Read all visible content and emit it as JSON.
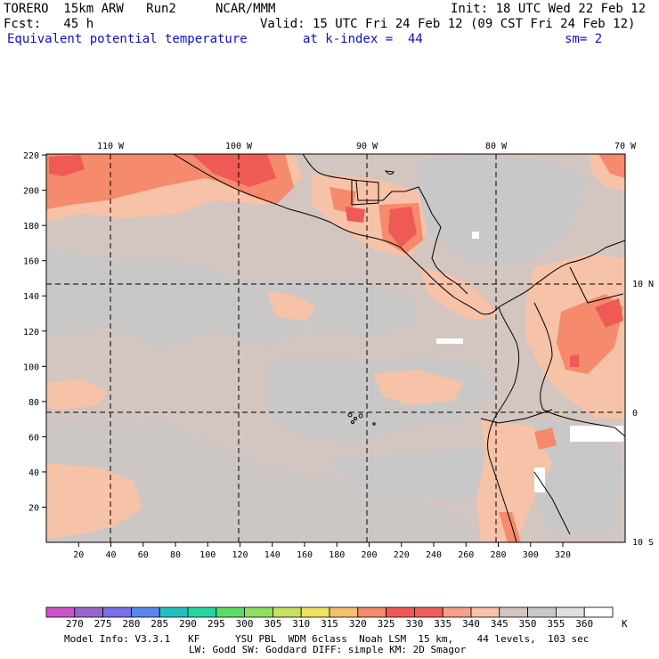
{
  "header": {
    "model": "TORERO  15km ARW   Run2",
    "center": "NCAR/MMM",
    "init": "Init: 18 UTC Wed 22 Feb 12",
    "fcst": "Fcst:   45 h",
    "valid": "Valid: 15 UTC Fri 24 Feb 12 (09 CST Fri 24 Feb 12)",
    "field": "Equivalent potential temperature",
    "level": "at k-index =  44",
    "smooth": "sm= 2"
  },
  "map": {
    "top_lon_labels": [
      "110 W",
      "100 W",
      "90 W",
      "80 W",
      "70 W"
    ],
    "right_lat_labels": [
      "10 N",
      "0",
      "10 S"
    ],
    "y_grid_labels": [
      "20",
      "40",
      "60",
      "80",
      "100",
      "120",
      "140",
      "160",
      "180",
      "200",
      "220"
    ],
    "x_grid_labels": [
      "20",
      "40",
      "60",
      "80",
      "100",
      "120",
      "140",
      "160",
      "180",
      "200",
      "220",
      "240",
      "260",
      "280",
      "300",
      "320"
    ],
    "colors": {
      "background_field": "#d3c5c0",
      "warm_field": "#f6c2a8",
      "orange": "#f58a6d",
      "red": "#ef5a55",
      "gray": "#c8c8c8",
      "white": "#ffffff"
    }
  },
  "colorbar": {
    "labels": [
      "270",
      "275",
      "280",
      "285",
      "290",
      "295",
      "300",
      "305",
      "310",
      "315",
      "320",
      "325",
      "330",
      "335",
      "340",
      "345",
      "350",
      "355",
      "360"
    ],
    "unit": "K",
    "colors": [
      "#cc55cc",
      "#9966cc",
      "#7a70e8",
      "#5a88f0",
      "#23c0c0",
      "#22d8a0",
      "#5cdc66",
      "#8ee060",
      "#c8e060",
      "#eee260",
      "#f6c070",
      "#f58a6d",
      "#ef5a55",
      "#ee5f5a",
      "#f6a088",
      "#f6c2a8",
      "#d3c5c0",
      "#c8c8c8",
      "#e0e0e0",
      "#ffffff"
    ]
  },
  "footer": {
    "line1": "Model Info: V3.3.1   KF      YSU PBL  WDM 6class  Noah LSM  15 km,    44 levels,  103 sec",
    "line2": "LW: Godd SW: Goddard DIFF: simple KM: 2D Smagor"
  }
}
